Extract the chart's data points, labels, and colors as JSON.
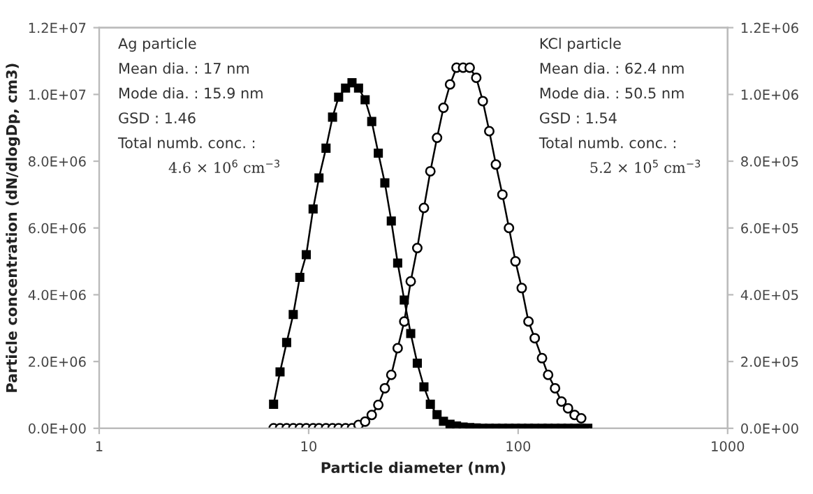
{
  "chart_data": {
    "type": "line",
    "xlabel": "Particle diameter (nm)",
    "ylabel": "Particle concentration (dN/dlogDp, cm3)",
    "log": "x",
    "xlim": [
      1,
      1000
    ],
    "xticks": [
      1,
      10,
      100,
      1000
    ],
    "ylim": [
      0,
      12000000
    ],
    "yticks": [
      {
        "value": 0,
        "label": "0.0E+00"
      },
      {
        "value": 2000000,
        "label": "2.0E+06"
      },
      {
        "value": 4000000,
        "label": "4.0E+06"
      },
      {
        "value": 6000000,
        "label": "6.0E+06"
      },
      {
        "value": 8000000,
        "label": "8.0E+06"
      },
      {
        "value": 10000000,
        "label": "1.0E+07"
      },
      {
        "value": 12000000,
        "label": "1.2E+07"
      }
    ],
    "y2lim": [
      0,
      1200000
    ],
    "y2ticks": [
      {
        "value": 0,
        "label": "0.0E+00"
      },
      {
        "value": 200000,
        "label": "2.0E+05"
      },
      {
        "value": 400000,
        "label": "4.0E+05"
      },
      {
        "value": 600000,
        "label": "6.0E+05"
      },
      {
        "value": 800000,
        "label": "8.0E+05"
      },
      {
        "value": 1000000,
        "label": "1.0E+06"
      },
      {
        "value": 1200000,
        "label": "1.2E+06"
      }
    ],
    "grid": false,
    "legend": false,
    "x": [
      6.8,
      7.3,
      7.85,
      8.44,
      9.07,
      9.74,
      10.5,
      11.2,
      12.1,
      13.0,
      13.9,
      15.0,
      16.1,
      17.3,
      18.6,
      20.0,
      21.5,
      23.1,
      24.8,
      26.6,
      28.6,
      30.7,
      33.0,
      35.5,
      38.1,
      41.0,
      44.0,
      47.3,
      50.8,
      54.6,
      58.7,
      63.1,
      67.8,
      72.8,
      78.3,
      84.1,
      90.4,
      97.1,
      104,
      112,
      120,
      130,
      139,
      150,
      161,
      173,
      186,
      200,
      215
    ],
    "series": [
      {
        "color": "#000000",
        "marker": "square",
        "values": [
          720000,
          1690000,
          2570000,
          3410000,
          4520000,
          5200000,
          6570000,
          7500000,
          8390000,
          9320000,
          9920000,
          10190000,
          10350000,
          10190000,
          9840000,
          9190000,
          8240000,
          7350000,
          6210000,
          4950000,
          3840000,
          2840000,
          1950000,
          1240000,
          720000,
          410000,
          210000,
          120000,
          70000,
          40000,
          20000,
          10000,
          0,
          0,
          0,
          0,
          0,
          0,
          0,
          0,
          0,
          0,
          0,
          0,
          0,
          0,
          0,
          0,
          0
        ]
      },
      {
        "color": "#000000",
        "marker": "circle",
        "axis": "y2",
        "values": [
          0,
          0,
          0,
          0,
          0,
          0,
          0,
          0,
          0,
          0,
          0,
          0,
          0,
          10000,
          20000,
          40000,
          70000,
          120000,
          160000,
          240000,
          320000,
          440000,
          540000,
          660000,
          770000,
          870000,
          960000,
          1030000,
          1080000,
          1080000,
          1080000,
          1050000,
          980000,
          890000,
          790000,
          700000,
          600000,
          500000,
          420000,
          320000,
          270000,
          210000,
          160000,
          120000,
          80000,
          60000,
          40000,
          30000,
          null
        ]
      }
    ],
    "annotations": [
      "Ag particle",
      "Mean dia. : 17 nm",
      "Mode dia. : 15.9 nm",
      "GSD : 1.46",
      "Total numb. conc. :",
      "4.6 × 10$^{6}$ cm$^{−3}$",
      "KCl particle",
      "Mean dia. : 62.4 nm",
      "Mode dia. : 50.5 nm",
      "GSD : 1.54",
      "Total numb. conc. :",
      "5.2 × 10$^{5}$ cm$^{−3}$"
    ]
  }
}
